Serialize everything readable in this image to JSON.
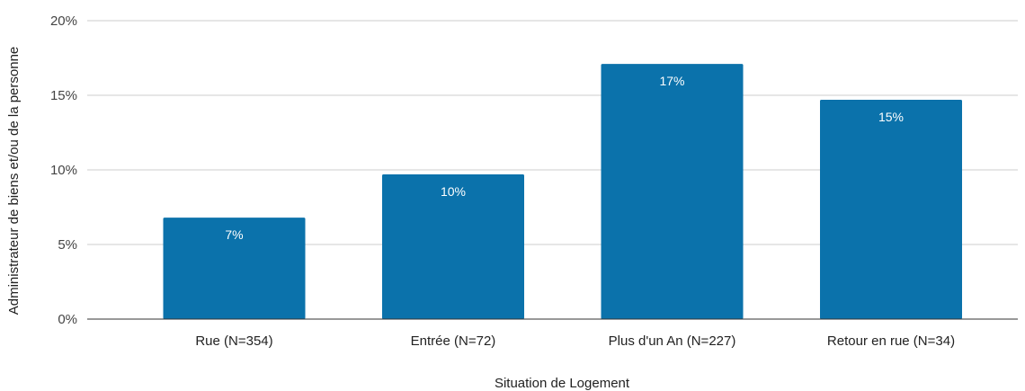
{
  "chart_data": {
    "type": "bar",
    "title": "",
    "xlabel": "Situation de Logement",
    "ylabel": "Administrateur de biens et/ou de la personne",
    "categories": [
      "Rue (N=354)",
      "Entrée (N=72)",
      "Plus d'un An (N=227)",
      "Retour en rue (N=34)"
    ],
    "values": [
      6.8,
      9.7,
      17.1,
      14.7
    ],
    "data_labels": [
      "7%",
      "10%",
      "17%",
      "15%"
    ],
    "ylim": [
      0,
      20
    ],
    "yticks": [
      0,
      5,
      10,
      15,
      20
    ],
    "ytick_labels": [
      "0%",
      "5%",
      "10%",
      "15%",
      "20%"
    ],
    "grid": true,
    "legend": "none",
    "bar_color": "#0b72ab",
    "grid_color": "#cccccc",
    "axis_color": "#333333"
  }
}
